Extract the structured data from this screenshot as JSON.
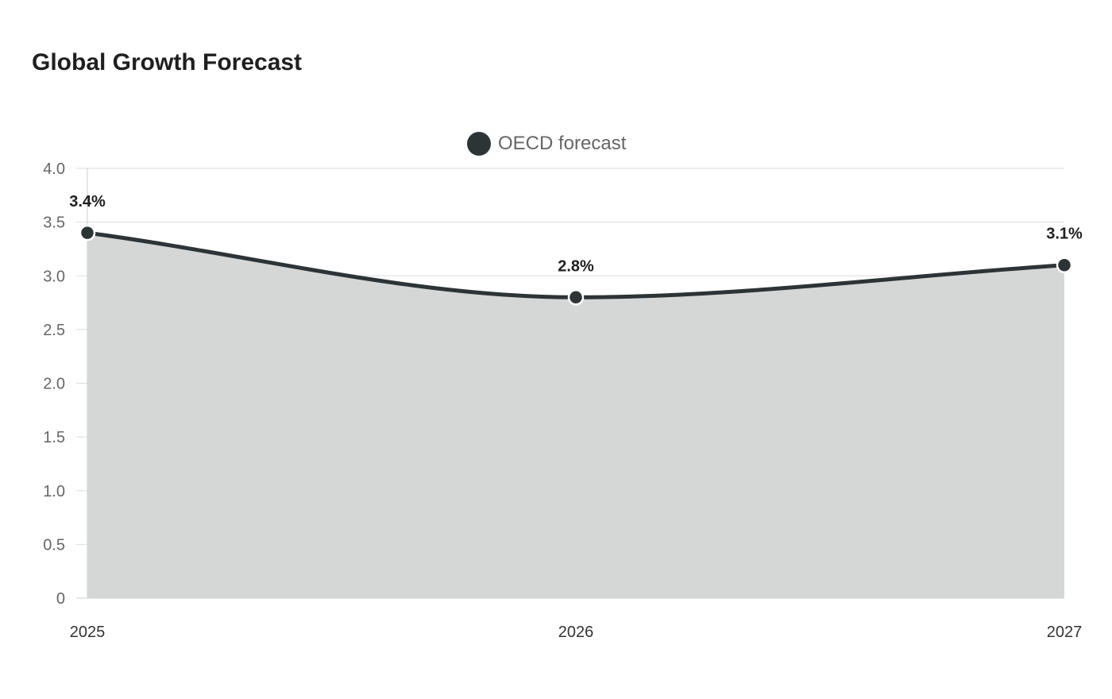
{
  "chart_data": {
    "type": "area",
    "title": "Global Growth Forecast",
    "categories": [
      "2025",
      "2026",
      "2027"
    ],
    "series": [
      {
        "name": "OECD forecast",
        "values": [
          3.4,
          2.8,
          3.1
        ],
        "data_labels": [
          "3.4%",
          "2.8%",
          "3.1%"
        ]
      }
    ],
    "y_ticks": [
      "0",
      "0.5",
      "1.0",
      "1.5",
      "2.0",
      "2.5",
      "3.0",
      "3.5",
      "4.0"
    ],
    "ylim": [
      0,
      4.0
    ],
    "grid": true,
    "legend_position": "top-center",
    "colors": {
      "line": "#2d3436",
      "area": "#d5d7d6",
      "grid": "#dddddd",
      "point_stroke": "#ffffff"
    }
  }
}
